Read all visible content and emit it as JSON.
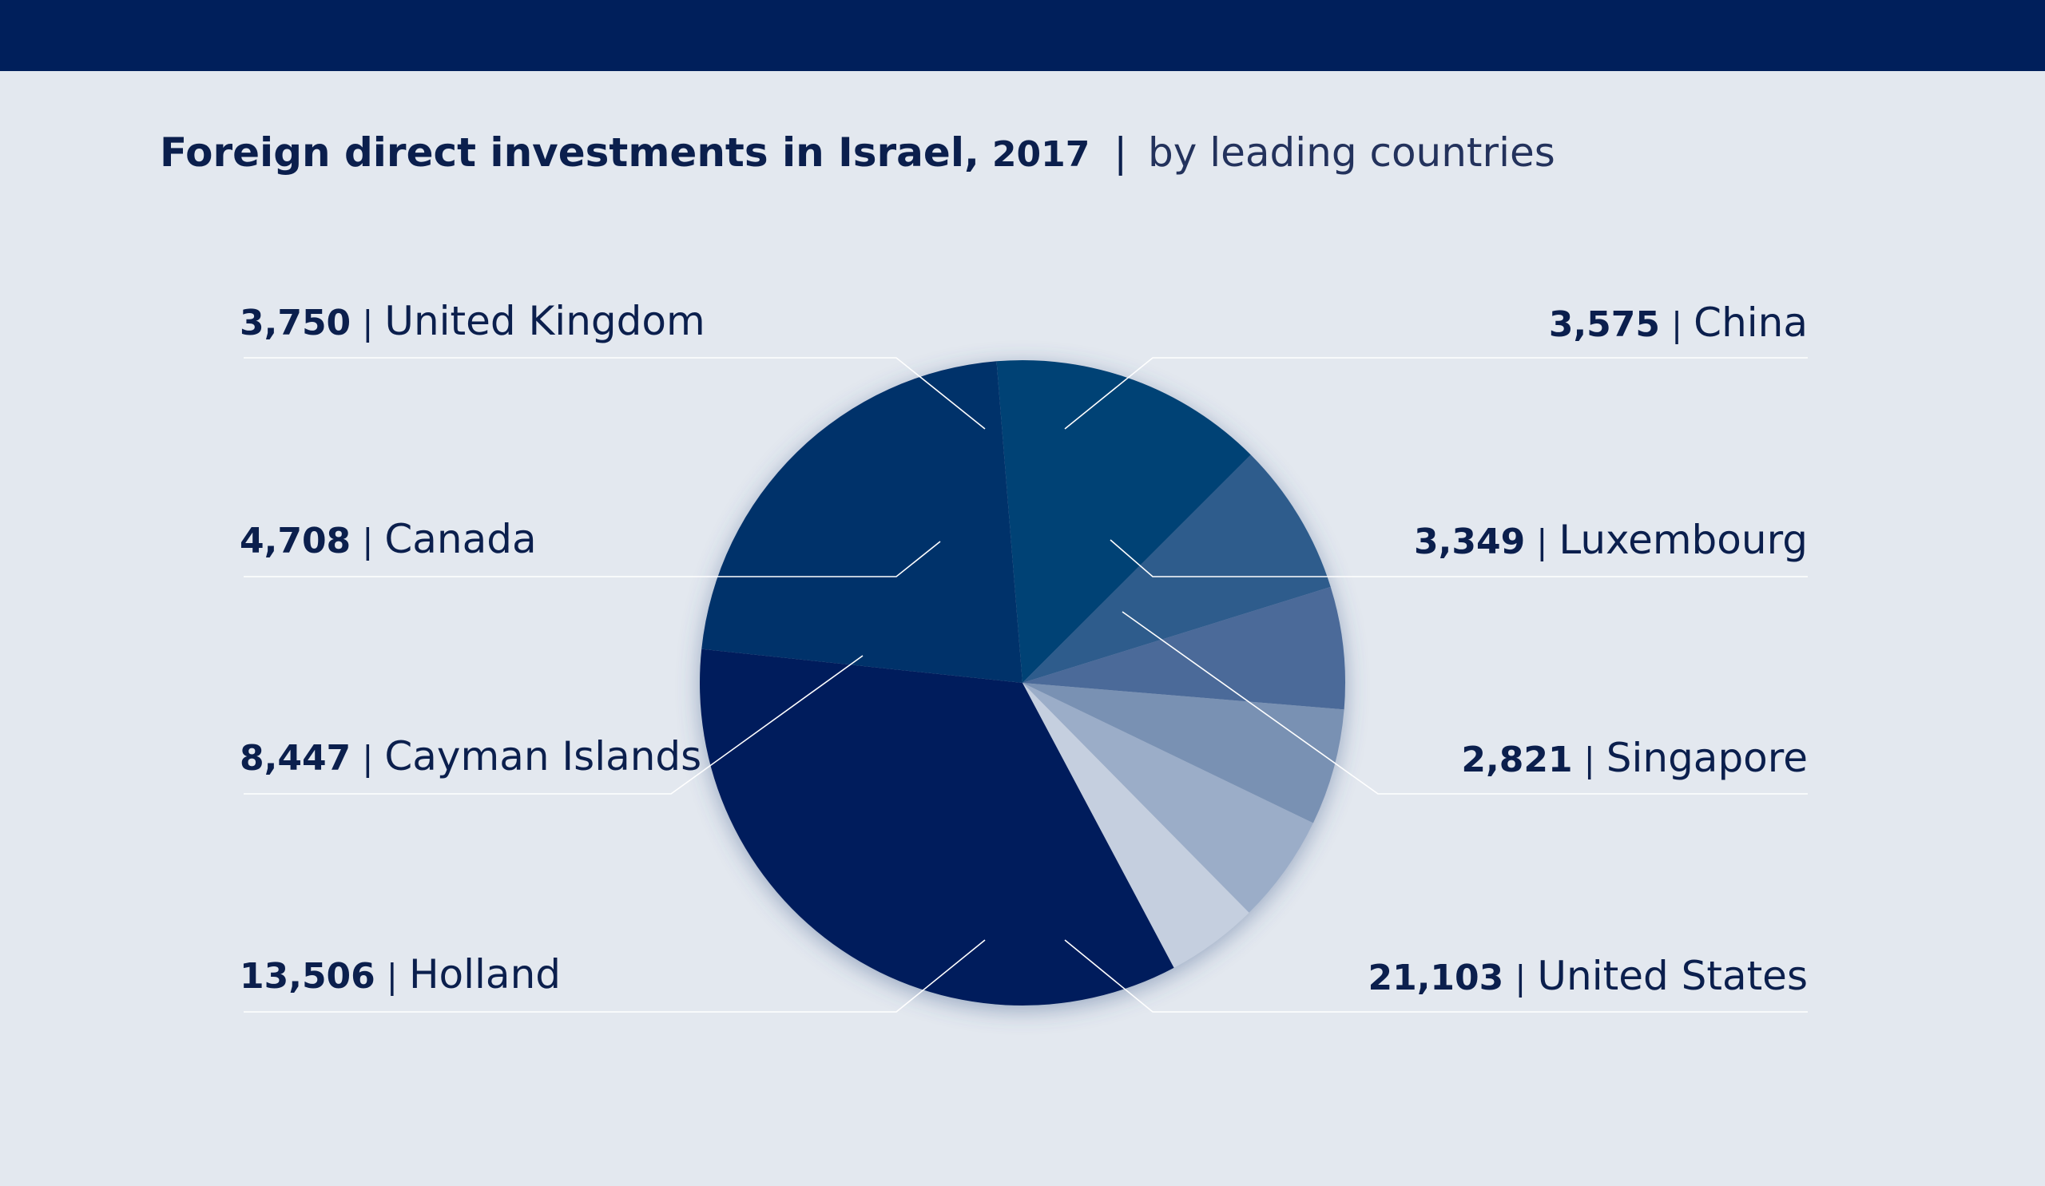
{
  "title": {
    "main": "Foreign direct investments in Israel,",
    "year": "2017",
    "separator": "|",
    "subtitle": "by leading countries"
  },
  "colors": {
    "header_bar": "#001f5b",
    "background": "#e3e8ef",
    "text": "#0b1f4d"
  },
  "chart_data": {
    "type": "pie",
    "title": "Foreign direct investments in Israel, 2017 | by leading countries",
    "categories": [
      "United States",
      "Holland",
      "Cayman Islands",
      "Canada",
      "United Kingdom",
      "China",
      "Luxembourg",
      "Singapore"
    ],
    "values": [
      21103,
      13506,
      8447,
      4708,
      3750,
      3575,
      3349,
      2821
    ],
    "value_labels": [
      "21,103",
      "13,506",
      "8,447",
      "4,708",
      "3,750",
      "3,575",
      "3,349",
      "2,821"
    ],
    "slice_colors": [
      "#001f5b",
      "#00306a",
      "#004275",
      "#2d5b8c",
      "#4c6b99",
      "#7991b3",
      "#9badc8",
      "#c5cfdf"
    ],
    "legend": "none"
  },
  "labels": {
    "left": [
      {
        "value": "3,750",
        "country": "United Kingdom"
      },
      {
        "value": "4,708",
        "country": "Canada"
      },
      {
        "value": "8,447",
        "country": "Cayman Islands"
      },
      {
        "value": "13,506",
        "country": "Holland"
      }
    ],
    "right": [
      {
        "value": "3,575",
        "country": "China"
      },
      {
        "value": "3,349",
        "country": "Luxembourg"
      },
      {
        "value": "2,821",
        "country": "Singapore"
      },
      {
        "value": "21,103",
        "country": "United States"
      }
    ],
    "separator": "|"
  }
}
